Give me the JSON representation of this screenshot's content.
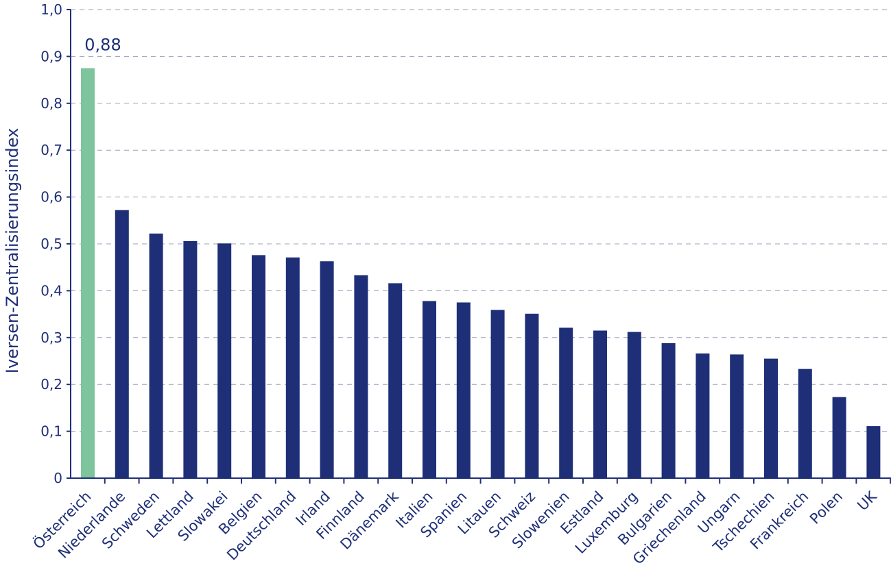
{
  "chart_data": {
    "type": "bar",
    "categories": [
      "Österreich",
      "Niederlande",
      "Schweden",
      "Lettland",
      "Slowakei",
      "Belgien",
      "Deutschland",
      "Irland",
      "Finnland",
      "Dänemark",
      "Italien",
      "Spanien",
      "Litauen",
      "Schweiz",
      "Slowenien",
      "Estland",
      "Luxemburg",
      "Bulgarien",
      "Griechenland",
      "Ungarn",
      "Tschechien",
      "Frankreich",
      "Polen",
      "UK"
    ],
    "values": [
      0.875,
      0.572,
      0.522,
      0.506,
      0.501,
      0.476,
      0.471,
      0.463,
      0.433,
      0.416,
      0.378,
      0.375,
      0.359,
      0.351,
      0.321,
      0.315,
      0.312,
      0.288,
      0.266,
      0.264,
      0.255,
      0.233,
      0.173,
      0.111
    ],
    "title": "",
    "xlabel": "",
    "ylabel": "Iversen-Zentralisierungsindex",
    "ylim": [
      0,
      1.0
    ],
    "yticks": [
      "0",
      "0,1",
      "0,2",
      "0,3",
      "0,4",
      "0,5",
      "0,6",
      "0,7",
      "0,8",
      "0,9",
      "1,0"
    ],
    "annotation": "0,88",
    "highlight_index": 0,
    "grid": true,
    "colors": {
      "bar": "#1e2f78",
      "highlight": "#7ec49c",
      "axis": "#1e2f78",
      "grid": "#9a9fb8",
      "text": "#1e2f78"
    }
  }
}
